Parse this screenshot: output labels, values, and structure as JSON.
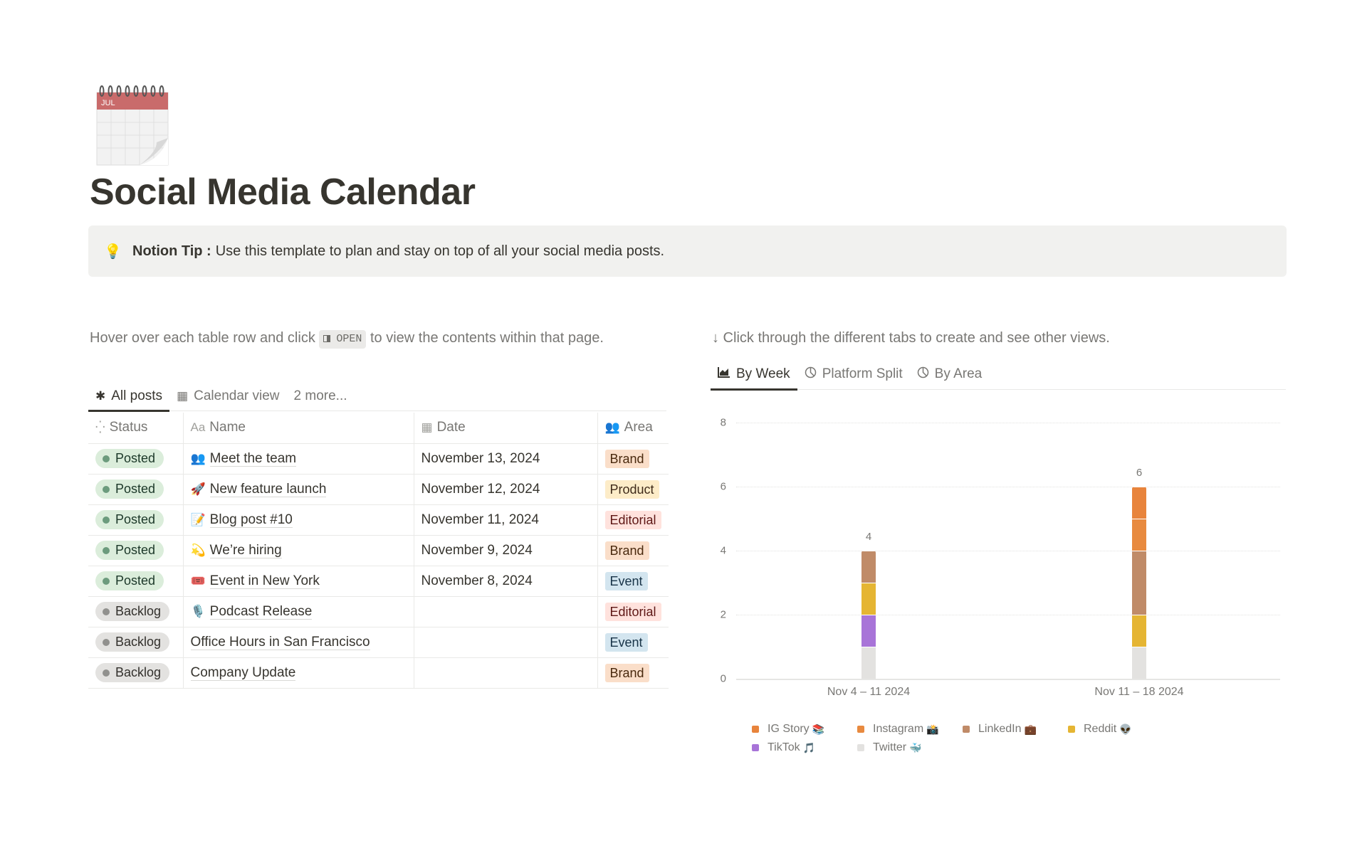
{
  "page": {
    "icon": "calendar-icon",
    "icon_month": "JUL",
    "title": "Social Media Calendar"
  },
  "callout": {
    "icon": "💡",
    "bold": "Notion Tip :",
    "text": "Use this template to plan and stay on top of all your social media posts."
  },
  "left_hint": {
    "before": "Hover over each table row and click",
    "chip": "OPEN",
    "after": "to view the contents within that page."
  },
  "database": {
    "tabs": [
      {
        "icon": "✱",
        "label": "All posts",
        "active": true
      },
      {
        "icon": "▦",
        "label": "Calendar view",
        "active": false
      },
      {
        "icon": "",
        "label": "2 more...",
        "active": false
      }
    ],
    "columns": [
      {
        "icon": "status-icon",
        "glyph": "⁛",
        "label": "Status"
      },
      {
        "icon": "text-icon",
        "glyph": "Aa",
        "label": "Name"
      },
      {
        "icon": "calendar-icon",
        "glyph": "▦",
        "label": "Date"
      },
      {
        "icon": "people-icon",
        "glyph": "👥",
        "label": "Area"
      }
    ],
    "rows": [
      {
        "status": "Posted",
        "emoji": "👥",
        "name": "Meet the team",
        "date": "November 13, 2024",
        "area": "Brand"
      },
      {
        "status": "Posted",
        "emoji": "🚀",
        "name": "New feature launch",
        "date": "November 12, 2024",
        "area": "Product"
      },
      {
        "status": "Posted",
        "emoji": "📝",
        "name": "Blog post #10",
        "date": "November 11, 2024",
        "area": "Editorial"
      },
      {
        "status": "Posted",
        "emoji": "💫",
        "name": "We’re hiring",
        "date": "November 9, 2024",
        "area": "Brand"
      },
      {
        "status": "Posted",
        "emoji": "🎟️",
        "name": "Event in New York",
        "date": "November 8, 2024",
        "area": "Event"
      },
      {
        "status": "Backlog",
        "emoji": "🎙️",
        "name": "Podcast Release",
        "date": "",
        "area": "Editorial"
      },
      {
        "status": "Backlog",
        "emoji": "",
        "name": "Office Hours in San Francisco",
        "date": "",
        "area": "Event"
      },
      {
        "status": "Backlog",
        "emoji": "",
        "name": "Company Update",
        "date": "",
        "area": "Brand"
      }
    ],
    "area_colors": {
      "Brand": {
        "bg": "#fadec9",
        "fg": "#49290e"
      },
      "Product": {
        "bg": "#fdecc8",
        "fg": "#402c1b"
      },
      "Editorial": {
        "bg": "#ffe2dd",
        "fg": "#5d1715"
      },
      "Event": {
        "bg": "#d3e5ef",
        "fg": "#183347"
      }
    }
  },
  "right_hint": "↓ Click through the different tabs to create and see other views.",
  "chart_tabs": [
    {
      "icon": "area-chart-icon",
      "glyph": "📈",
      "label": "By Week",
      "active": true
    },
    {
      "icon": "pie-chart-icon",
      "glyph": "◔",
      "label": "Platform Split",
      "active": false
    },
    {
      "icon": "pie-chart-icon",
      "glyph": "◔",
      "label": "By Area",
      "active": false
    }
  ],
  "chart_data": {
    "type": "bar",
    "stacked": true,
    "title": "",
    "xlabel": "",
    "ylabel": "",
    "ylim": [
      0,
      8
    ],
    "yticks": [
      0,
      2,
      4,
      6,
      8
    ],
    "grid": true,
    "legend_position": "bottom",
    "categories": [
      "Nov 4 – 11 2024",
      "Nov 11 – 18 2024"
    ],
    "totals": [
      4,
      6
    ],
    "series": [
      {
        "name": "Twitter 🐳",
        "color": "#e3e2e0",
        "values": [
          1,
          1
        ]
      },
      {
        "name": "TikTok 🎵",
        "color": "#a874d8",
        "values": [
          1,
          0
        ]
      },
      {
        "name": "Reddit 👽",
        "color": "#e5b533",
        "values": [
          1,
          1
        ]
      },
      {
        "name": "LinkedIn 💼",
        "color": "#c08b68",
        "values": [
          1,
          2
        ]
      },
      {
        "name": "Instagram 📸",
        "color": "#e88a3f",
        "values": [
          0,
          1
        ]
      },
      {
        "name": "IG Story 📚",
        "color": "#e8843c",
        "values": [
          0,
          1
        ]
      }
    ],
    "legend": [
      {
        "label": "IG Story",
        "emoji": "📚",
        "color": "#e8843c"
      },
      {
        "label": "Instagram",
        "emoji": "📸",
        "color": "#e88a3f"
      },
      {
        "label": "LinkedIn",
        "emoji": "💼",
        "color": "#c08b68"
      },
      {
        "label": "Reddit",
        "emoji": "👽",
        "color": "#e5b533"
      },
      {
        "label": "TikTok",
        "emoji": "🎵",
        "color": "#a874d8"
      },
      {
        "label": "Twitter",
        "emoji": "🐳",
        "color": "#e3e2e0"
      }
    ]
  }
}
